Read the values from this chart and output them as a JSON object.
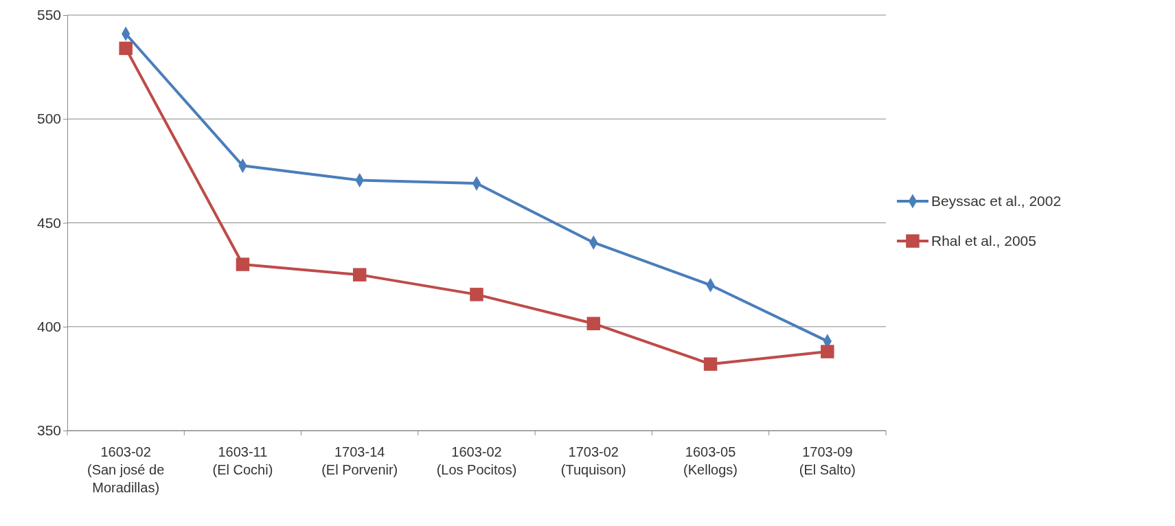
{
  "chart_data": {
    "type": "line",
    "categories": [
      "1603-02\n(San josé de\nMoradillas)",
      "1603-11\n(El Cochi)",
      "1703-14\n(El Porvenir)",
      "1603-02\n(Los Pocitos)",
      "1703-02\n(Tuquison)",
      "1603-05\n(Kellogs)",
      "1703-09\n(El Salto)"
    ],
    "series": [
      {
        "name": "Beyssac et al., 2002",
        "color": "#4a7ebb",
        "marker": "diamond",
        "values": [
          541,
          477.5,
          470.5,
          469,
          440.5,
          420,
          393
        ]
      },
      {
        "name": "Rhal et al., 2005",
        "color": "#be4b48",
        "marker": "square",
        "values": [
          534,
          430,
          425,
          415.5,
          401.5,
          382,
          388
        ]
      }
    ],
    "ylim": [
      350,
      550
    ],
    "yticks": [
      350,
      400,
      450,
      500,
      550
    ],
    "grid": "y",
    "legend": "right"
  }
}
